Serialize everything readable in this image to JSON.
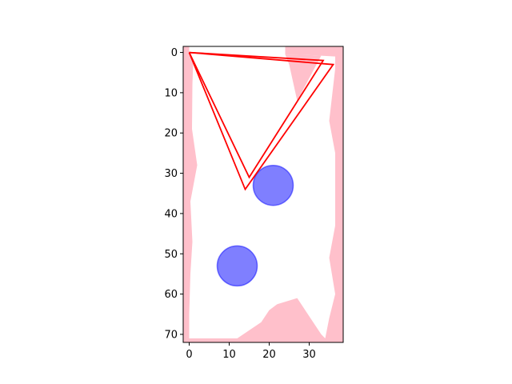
{
  "chart_data": {
    "type": "scatter",
    "title": "",
    "xlabel": "",
    "ylabel": "",
    "xlim": [
      -1.5,
      38.5
    ],
    "ylim": [
      72,
      -1.5
    ],
    "y_inverted": true,
    "grid": false,
    "xticks": [
      0,
      10,
      20,
      30
    ],
    "yticks": [
      0,
      10,
      20,
      30,
      40,
      50,
      60,
      70
    ],
    "colors": {
      "obstacle_fill": "#ffc0cb",
      "circle_fill": "#0000ff",
      "circle_alpha": 0.5,
      "path_stroke": "#ff0000"
    },
    "obstacles": [
      [
        [
          -1.5,
          -1.5
        ],
        [
          0,
          -1.5
        ],
        [
          0,
          0
        ],
        [
          1,
          2
        ],
        [
          0.8,
          8
        ],
        [
          0.7,
          19
        ],
        [
          2,
          28
        ],
        [
          0.3,
          37
        ],
        [
          0.8,
          47
        ],
        [
          0.3,
          55
        ],
        [
          0,
          65
        ],
        [
          0,
          71
        ],
        [
          12,
          71
        ],
        [
          18,
          67
        ],
        [
          20,
          64
        ],
        [
          22,
          62.5
        ],
        [
          27,
          61
        ],
        [
          33,
          70
        ],
        [
          34,
          71
        ],
        [
          35,
          66
        ],
        [
          36.5,
          60
        ],
        [
          35,
          51
        ],
        [
          36.5,
          43
        ],
        [
          36.5,
          25
        ],
        [
          35,
          17
        ],
        [
          36.5,
          4
        ],
        [
          36.5,
          1
        ],
        [
          33,
          0.8
        ],
        [
          29,
          0.6
        ],
        [
          24,
          0.5
        ],
        [
          24,
          -1.5
        ],
        [
          38.5,
          -1.5
        ],
        [
          38.5,
          72
        ],
        [
          -1.5,
          72
        ]
      ],
      [
        [
          24,
          0.5
        ],
        [
          29,
          0.6
        ],
        [
          33,
          0.8
        ],
        [
          27,
          12
        ],
        [
          25,
          3
        ]
      ]
    ],
    "circles": [
      {
        "cx": 21,
        "cy": 33,
        "r": 5
      },
      {
        "cx": 12,
        "cy": 53,
        "r": 5
      }
    ],
    "paths": [
      [
        [
          0,
          0
        ],
        [
          33.5,
          2
        ],
        [
          15,
          31
        ],
        [
          0,
          0
        ]
      ],
      [
        [
          0,
          0
        ],
        [
          36,
          3
        ],
        [
          14,
          34
        ],
        [
          0,
          0
        ]
      ]
    ]
  }
}
